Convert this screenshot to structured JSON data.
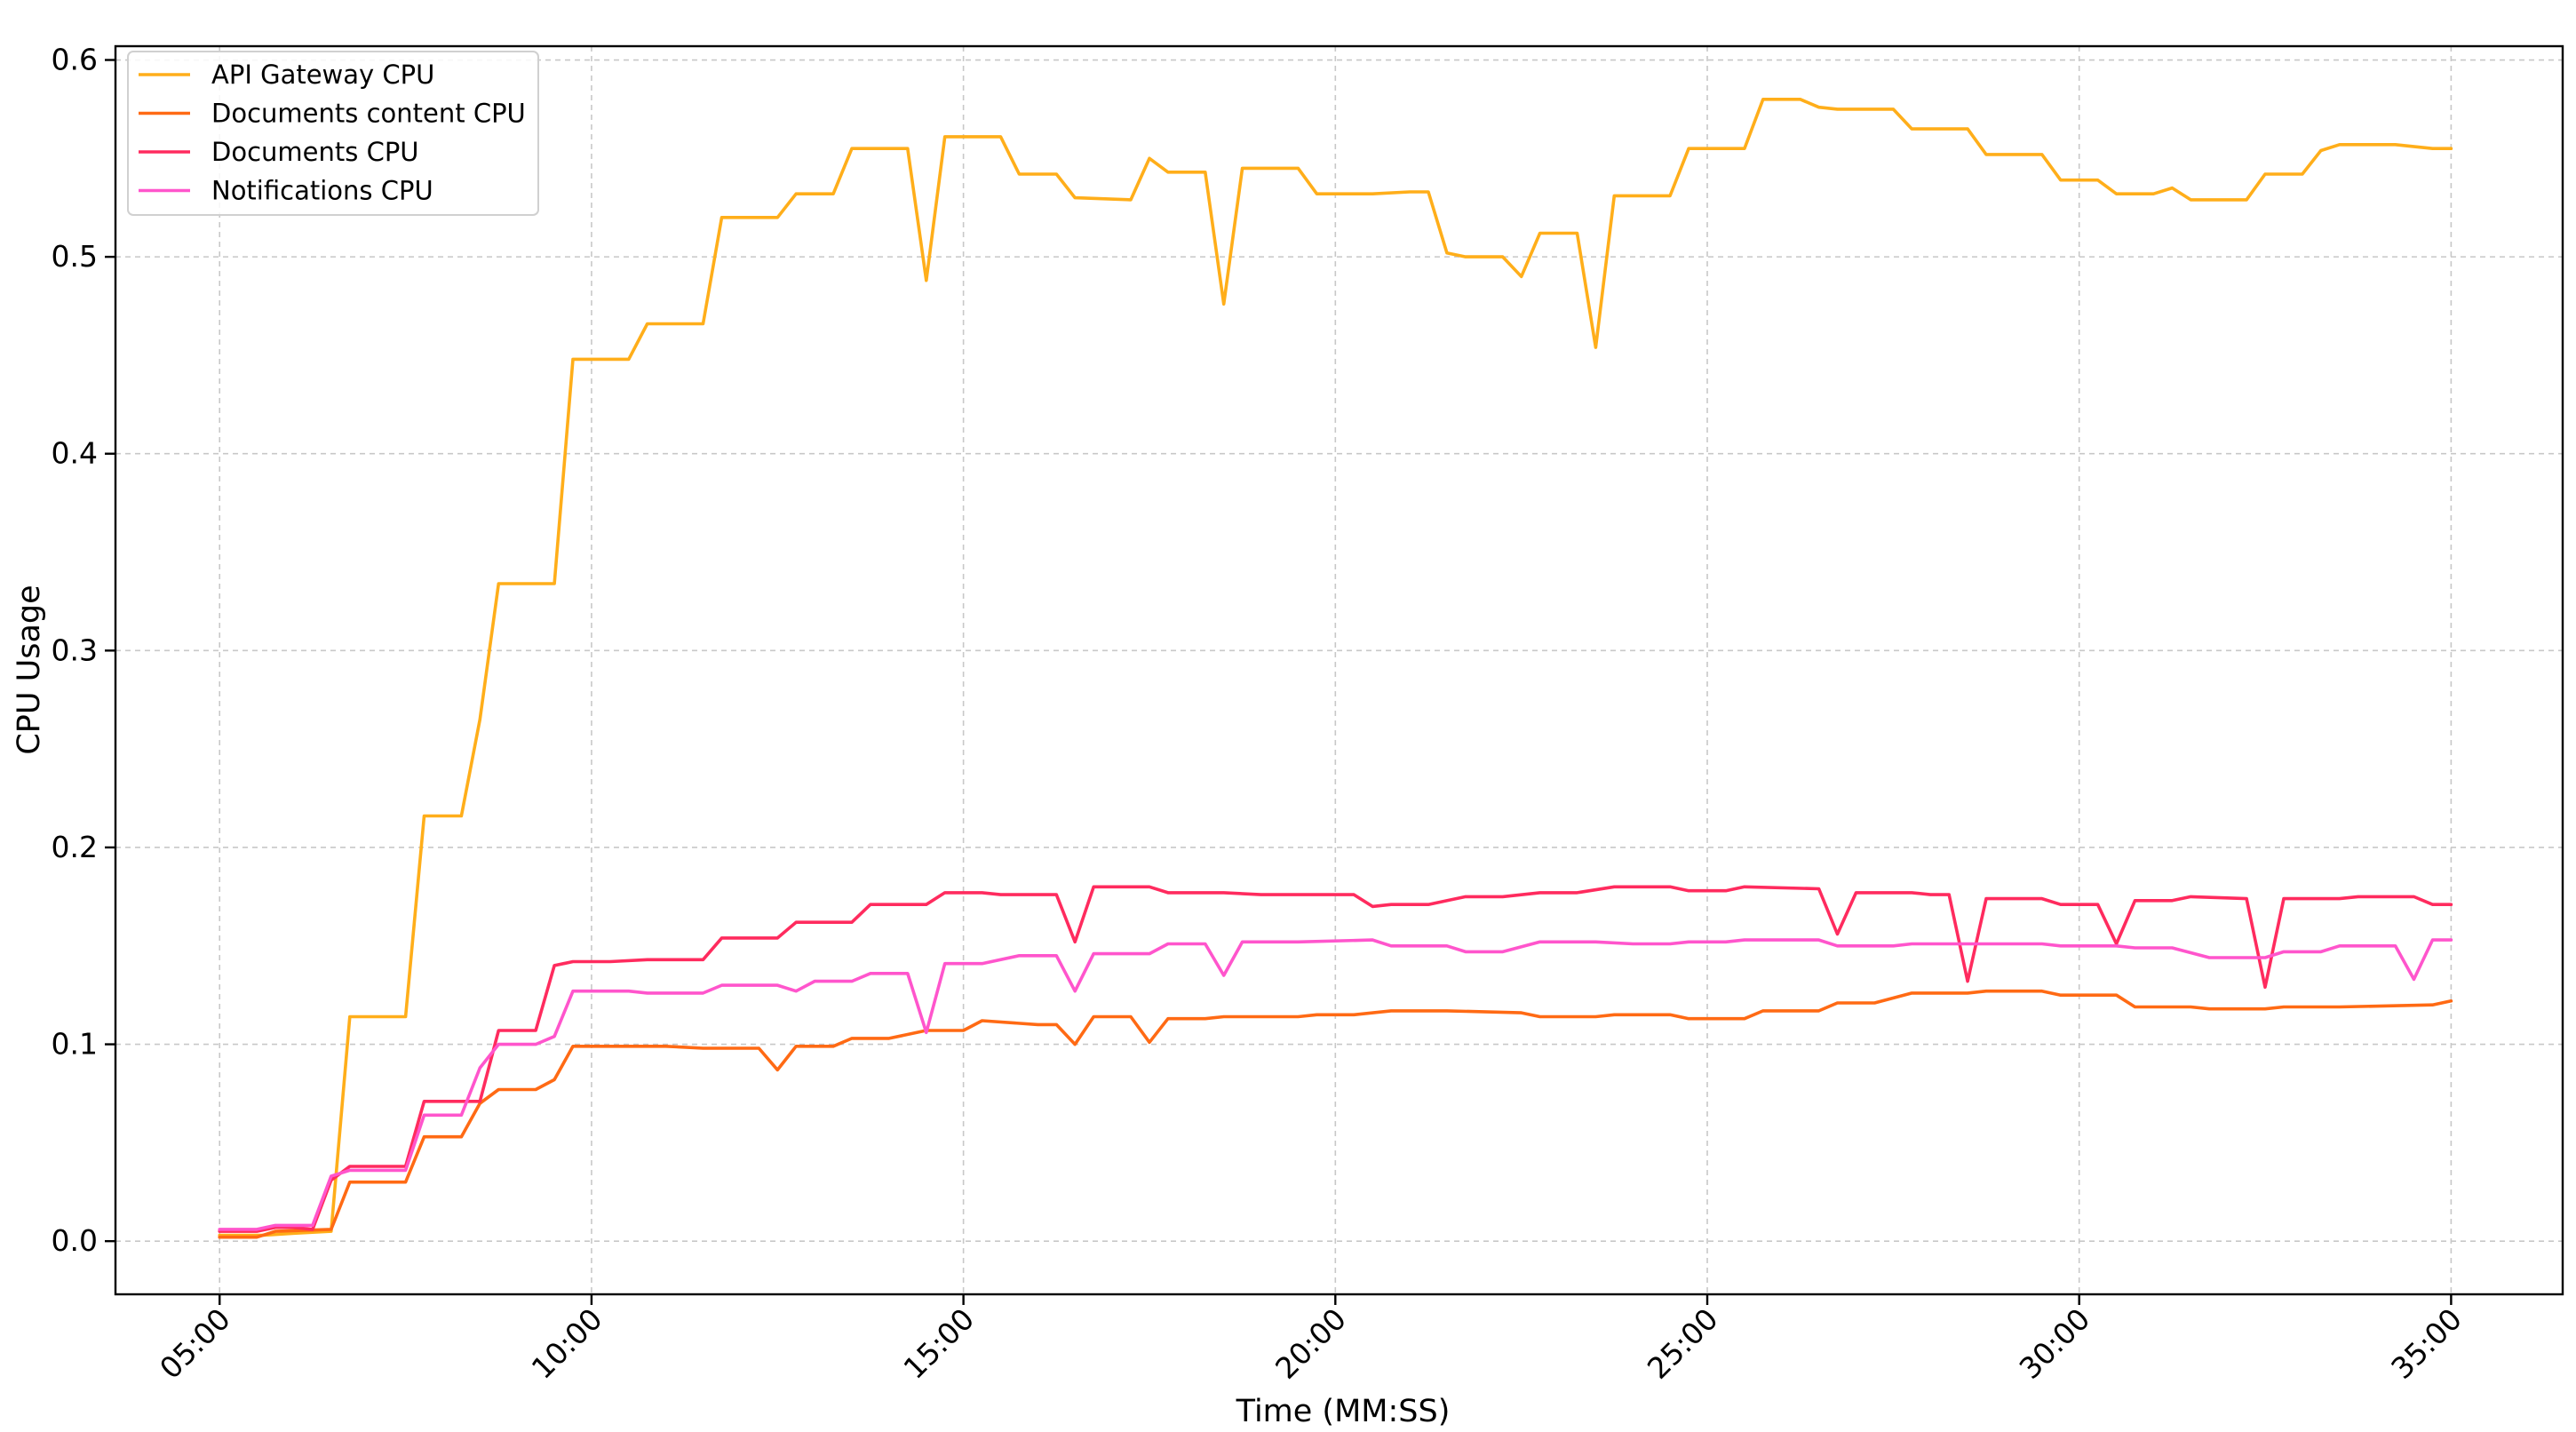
{
  "chart_data": {
    "type": "line",
    "title": "",
    "xlabel": "Time (MM:SS)",
    "ylabel": "CPU Usage",
    "xlim": [
      3.6,
      36.5
    ],
    "ylim": [
      -0.027,
      0.607
    ],
    "x_unit": "minutes",
    "xticks": [
      5,
      10,
      15,
      20,
      25,
      30,
      35
    ],
    "xtick_labels": [
      "05:00",
      "10:00",
      "15:00",
      "20:00",
      "25:00",
      "30:00",
      "35:00"
    ],
    "yticks": [
      0.0,
      0.1,
      0.2,
      0.3,
      0.4,
      0.5,
      0.6
    ],
    "ytick_labels": [
      "0.0",
      "0.1",
      "0.2",
      "0.3",
      "0.4",
      "0.5",
      "0.6"
    ],
    "grid": true,
    "legend": "top-left",
    "series": [
      {
        "name": "API Gateway CPU",
        "color": "#ffae1a",
        "points": [
          [
            5.0,
            0.003
          ],
          [
            5.6,
            0.003
          ],
          [
            6.0,
            0.004
          ],
          [
            6.5,
            0.005
          ],
          [
            6.75,
            0.114
          ],
          [
            7.5,
            0.114
          ],
          [
            7.75,
            0.216
          ],
          [
            8.25,
            0.216
          ],
          [
            8.5,
            0.265
          ],
          [
            8.75,
            0.334
          ],
          [
            9.5,
            0.334
          ],
          [
            9.75,
            0.448
          ],
          [
            10.5,
            0.448
          ],
          [
            10.75,
            0.466
          ],
          [
            11.5,
            0.466
          ],
          [
            11.75,
            0.52
          ],
          [
            12.5,
            0.52
          ],
          [
            12.75,
            0.532
          ],
          [
            13.25,
            0.532
          ],
          [
            13.5,
            0.555
          ],
          [
            14.25,
            0.555
          ],
          [
            14.5,
            0.488
          ],
          [
            14.75,
            0.561
          ],
          [
            15.5,
            0.561
          ],
          [
            15.75,
            0.542
          ],
          [
            16.25,
            0.542
          ],
          [
            16.5,
            0.53
          ],
          [
            17.25,
            0.529
          ],
          [
            17.5,
            0.55
          ],
          [
            17.75,
            0.543
          ],
          [
            18.25,
            0.543
          ],
          [
            18.5,
            0.476
          ],
          [
            18.75,
            0.545
          ],
          [
            19.5,
            0.545
          ],
          [
            19.75,
            0.532
          ],
          [
            20.5,
            0.532
          ],
          [
            21.0,
            0.533
          ],
          [
            21.25,
            0.533
          ],
          [
            21.5,
            0.502
          ],
          [
            21.75,
            0.5
          ],
          [
            22.25,
            0.5
          ],
          [
            22.5,
            0.49
          ],
          [
            22.75,
            0.512
          ],
          [
            23.25,
            0.512
          ],
          [
            23.5,
            0.454
          ],
          [
            23.75,
            0.531
          ],
          [
            24.5,
            0.531
          ],
          [
            24.75,
            0.555
          ],
          [
            25.5,
            0.555
          ],
          [
            25.75,
            0.58
          ],
          [
            26.25,
            0.58
          ],
          [
            26.5,
            0.576
          ],
          [
            26.75,
            0.575
          ],
          [
            27.5,
            0.575
          ],
          [
            27.75,
            0.565
          ],
          [
            28.5,
            0.565
          ],
          [
            28.75,
            0.552
          ],
          [
            29.5,
            0.552
          ],
          [
            29.75,
            0.539
          ],
          [
            30.25,
            0.539
          ],
          [
            30.5,
            0.532
          ],
          [
            31.0,
            0.532
          ],
          [
            31.25,
            0.535
          ],
          [
            31.5,
            0.529
          ],
          [
            32.25,
            0.529
          ],
          [
            32.5,
            0.542
          ],
          [
            33.0,
            0.542
          ],
          [
            33.25,
            0.554
          ],
          [
            33.5,
            0.557
          ],
          [
            34.25,
            0.557
          ],
          [
            34.75,
            0.555
          ],
          [
            35.0,
            0.555
          ]
        ]
      },
      {
        "name": "Documents content CPU",
        "color": "#ff6a14",
        "points": [
          [
            5.0,
            0.002
          ],
          [
            5.5,
            0.002
          ],
          [
            5.75,
            0.005
          ],
          [
            6.5,
            0.006
          ],
          [
            6.75,
            0.03
          ],
          [
            7.5,
            0.03
          ],
          [
            7.75,
            0.053
          ],
          [
            8.25,
            0.053
          ],
          [
            8.5,
            0.07
          ],
          [
            8.75,
            0.077
          ],
          [
            9.25,
            0.077
          ],
          [
            9.5,
            0.082
          ],
          [
            9.75,
            0.099
          ],
          [
            10.5,
            0.099
          ],
          [
            11.0,
            0.099
          ],
          [
            11.5,
            0.098
          ],
          [
            12.25,
            0.098
          ],
          [
            12.5,
            0.087
          ],
          [
            12.75,
            0.099
          ],
          [
            13.25,
            0.099
          ],
          [
            13.5,
            0.103
          ],
          [
            14.0,
            0.103
          ],
          [
            14.5,
            0.107
          ],
          [
            15.0,
            0.107
          ],
          [
            15.25,
            0.112
          ],
          [
            16.0,
            0.11
          ],
          [
            16.25,
            0.11
          ],
          [
            16.5,
            0.1
          ],
          [
            16.75,
            0.114
          ],
          [
            17.25,
            0.114
          ],
          [
            17.5,
            0.101
          ],
          [
            17.75,
            0.113
          ],
          [
            18.25,
            0.113
          ],
          [
            18.5,
            0.114
          ],
          [
            19.5,
            0.114
          ],
          [
            19.75,
            0.115
          ],
          [
            20.25,
            0.115
          ],
          [
            20.75,
            0.117
          ],
          [
            21.5,
            0.117
          ],
          [
            22.5,
            0.116
          ],
          [
            22.75,
            0.114
          ],
          [
            23.5,
            0.114
          ],
          [
            23.75,
            0.115
          ],
          [
            24.5,
            0.115
          ],
          [
            24.75,
            0.113
          ],
          [
            25.5,
            0.113
          ],
          [
            25.75,
            0.117
          ],
          [
            26.5,
            0.117
          ],
          [
            26.75,
            0.121
          ],
          [
            27.25,
            0.121
          ],
          [
            27.75,
            0.126
          ],
          [
            28.5,
            0.126
          ],
          [
            28.75,
            0.127
          ],
          [
            29.5,
            0.127
          ],
          [
            29.75,
            0.125
          ],
          [
            30.5,
            0.125
          ],
          [
            30.75,
            0.119
          ],
          [
            31.5,
            0.119
          ],
          [
            31.75,
            0.118
          ],
          [
            32.5,
            0.118
          ],
          [
            32.75,
            0.119
          ],
          [
            33.5,
            0.119
          ],
          [
            34.75,
            0.12
          ],
          [
            35.0,
            0.122
          ]
        ]
      },
      {
        "name": "Documents CPU",
        "color": "#ff2b5e",
        "points": [
          [
            5.0,
            0.005
          ],
          [
            5.5,
            0.005
          ],
          [
            5.75,
            0.007
          ],
          [
            6.0,
            0.007
          ],
          [
            6.25,
            0.006
          ],
          [
            6.5,
            0.031
          ],
          [
            6.75,
            0.038
          ],
          [
            7.5,
            0.038
          ],
          [
            7.75,
            0.071
          ],
          [
            8.5,
            0.071
          ],
          [
            8.75,
            0.107
          ],
          [
            9.25,
            0.107
          ],
          [
            9.5,
            0.14
          ],
          [
            9.75,
            0.142
          ],
          [
            10.25,
            0.142
          ],
          [
            10.75,
            0.143
          ],
          [
            11.5,
            0.143
          ],
          [
            11.75,
            0.154
          ],
          [
            12.5,
            0.154
          ],
          [
            12.75,
            0.162
          ],
          [
            13.5,
            0.162
          ],
          [
            13.75,
            0.171
          ],
          [
            14.5,
            0.171
          ],
          [
            14.75,
            0.177
          ],
          [
            15.25,
            0.177
          ],
          [
            15.5,
            0.176
          ],
          [
            16.25,
            0.176
          ],
          [
            16.5,
            0.152
          ],
          [
            16.75,
            0.18
          ],
          [
            17.5,
            0.18
          ],
          [
            17.75,
            0.177
          ],
          [
            18.5,
            0.177
          ],
          [
            19.0,
            0.176
          ],
          [
            20.25,
            0.176
          ],
          [
            20.5,
            0.17
          ],
          [
            20.75,
            0.171
          ],
          [
            21.25,
            0.171
          ],
          [
            21.75,
            0.175
          ],
          [
            22.25,
            0.175
          ],
          [
            22.75,
            0.177
          ],
          [
            23.25,
            0.177
          ],
          [
            23.75,
            0.18
          ],
          [
            24.5,
            0.18
          ],
          [
            24.75,
            0.178
          ],
          [
            25.25,
            0.178
          ],
          [
            25.5,
            0.18
          ],
          [
            26.5,
            0.179
          ],
          [
            26.75,
            0.156
          ],
          [
            27.0,
            0.177
          ],
          [
            27.75,
            0.177
          ],
          [
            28.0,
            0.176
          ],
          [
            28.25,
            0.176
          ],
          [
            28.5,
            0.132
          ],
          [
            28.75,
            0.174
          ],
          [
            29.5,
            0.174
          ],
          [
            29.75,
            0.171
          ],
          [
            30.25,
            0.171
          ],
          [
            30.5,
            0.151
          ],
          [
            30.75,
            0.173
          ],
          [
            31.25,
            0.173
          ],
          [
            31.5,
            0.175
          ],
          [
            32.25,
            0.174
          ],
          [
            32.5,
            0.129
          ],
          [
            32.75,
            0.174
          ],
          [
            33.5,
            0.174
          ],
          [
            33.75,
            0.175
          ],
          [
            34.5,
            0.175
          ],
          [
            34.75,
            0.171
          ],
          [
            35.0,
            0.171
          ]
        ]
      },
      {
        "name": "Notifications CPU",
        "color": "#ff55cc",
        "points": [
          [
            5.0,
            0.006
          ],
          [
            5.5,
            0.006
          ],
          [
            5.75,
            0.008
          ],
          [
            6.25,
            0.008
          ],
          [
            6.5,
            0.033
          ],
          [
            6.75,
            0.036
          ],
          [
            7.5,
            0.036
          ],
          [
            7.75,
            0.064
          ],
          [
            8.25,
            0.064
          ],
          [
            8.5,
            0.088
          ],
          [
            8.75,
            0.1
          ],
          [
            9.25,
            0.1
          ],
          [
            9.5,
            0.104
          ],
          [
            9.75,
            0.127
          ],
          [
            10.5,
            0.127
          ],
          [
            10.75,
            0.126
          ],
          [
            11.5,
            0.126
          ],
          [
            11.75,
            0.13
          ],
          [
            12.5,
            0.13
          ],
          [
            12.75,
            0.127
          ],
          [
            13.0,
            0.132
          ],
          [
            13.5,
            0.132
          ],
          [
            13.75,
            0.136
          ],
          [
            14.25,
            0.136
          ],
          [
            14.5,
            0.106
          ],
          [
            14.75,
            0.141
          ],
          [
            15.25,
            0.141
          ],
          [
            15.75,
            0.145
          ],
          [
            16.25,
            0.145
          ],
          [
            16.5,
            0.127
          ],
          [
            16.75,
            0.146
          ],
          [
            17.5,
            0.146
          ],
          [
            17.75,
            0.151
          ],
          [
            18.25,
            0.151
          ],
          [
            18.5,
            0.135
          ],
          [
            18.75,
            0.152
          ],
          [
            19.5,
            0.152
          ],
          [
            20.5,
            0.153
          ],
          [
            20.75,
            0.15
          ],
          [
            21.5,
            0.15
          ],
          [
            21.75,
            0.147
          ],
          [
            22.25,
            0.147
          ],
          [
            22.75,
            0.152
          ],
          [
            23.5,
            0.152
          ],
          [
            24.0,
            0.151
          ],
          [
            24.5,
            0.151
          ],
          [
            24.75,
            0.152
          ],
          [
            25.25,
            0.152
          ],
          [
            25.5,
            0.153
          ],
          [
            26.5,
            0.153
          ],
          [
            26.75,
            0.15
          ],
          [
            27.5,
            0.15
          ],
          [
            27.75,
            0.151
          ],
          [
            28.5,
            0.151
          ],
          [
            29.5,
            0.151
          ],
          [
            29.75,
            0.15
          ],
          [
            30.5,
            0.15
          ],
          [
            30.75,
            0.149
          ],
          [
            31.25,
            0.149
          ],
          [
            31.75,
            0.144
          ],
          [
            32.5,
            0.144
          ],
          [
            32.75,
            0.147
          ],
          [
            33.25,
            0.147
          ],
          [
            33.5,
            0.15
          ],
          [
            34.25,
            0.15
          ],
          [
            34.5,
            0.133
          ],
          [
            34.75,
            0.153
          ],
          [
            35.0,
            0.153
          ]
        ]
      }
    ]
  }
}
